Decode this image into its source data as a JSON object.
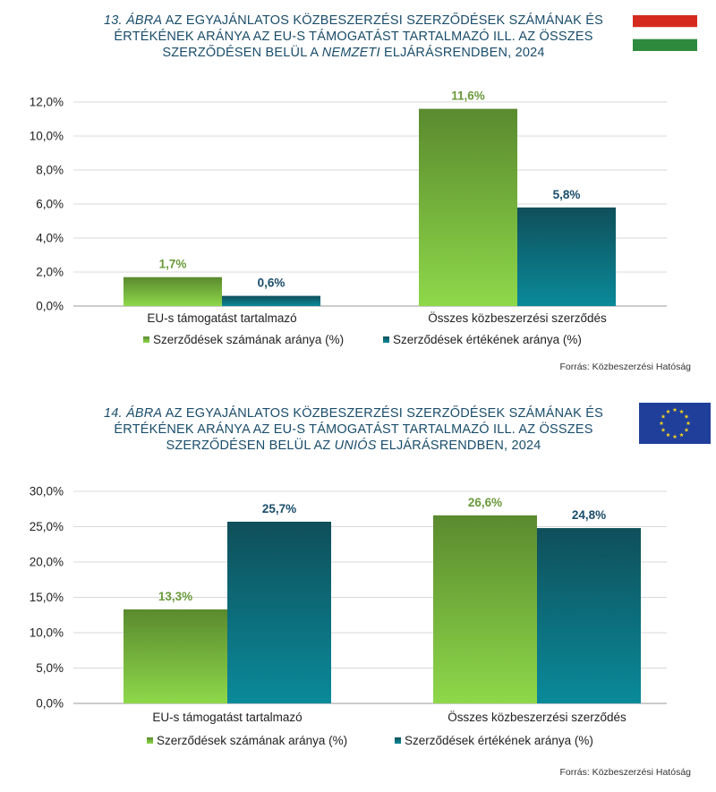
{
  "colors": {
    "green_top": "#5a8a2e",
    "green_bottom": "#8ed84a",
    "teal_top": "#0f4f5a",
    "teal_bottom": "#0a8a9a",
    "green_label": "#6a9a3a",
    "teal_label": "#1a4d6b",
    "title": "#1a4d6b"
  },
  "chart_data": [
    {
      "type": "bar",
      "title_parts": {
        "prefix": "13. ábra",
        "line1": "az egyajánlatos közbeszerzési szerződések számának és",
        "line2": "értékének aránya az EU-s támogatást tartalmazó ill. az összes",
        "line3_a": "szerződésen belül a",
        "line3_it": "nemzeti",
        "line3_b": "eljárásrendben, 2024"
      },
      "flag": "hungarian-flag-icon",
      "categories": [
        "EU-s támogatást tartalmazó",
        "Összes közbeszerzési szerződés"
      ],
      "series": [
        {
          "name": "Szerződések számának aránya (%)",
          "values": [
            1.7,
            11.6
          ],
          "labels": [
            "1,7%",
            "11,6%"
          ]
        },
        {
          "name": "Szerződések értékének aránya (%)",
          "values": [
            0.6,
            5.8
          ],
          "labels": [
            "0,6%",
            "5,8%"
          ]
        }
      ],
      "ylim": [
        0,
        12
      ],
      "yticks": [
        "0,0%",
        "2,0%",
        "4,0%",
        "6,0%",
        "8,0%",
        "10,0%",
        "12,0%"
      ],
      "ytick_values": [
        0,
        2,
        4,
        6,
        8,
        10,
        12
      ],
      "grid": true,
      "legend": "bottom",
      "source": "Forrás: Közbeszerzési Hatóság"
    },
    {
      "type": "bar",
      "title_parts": {
        "prefix": "14. ábra",
        "line1": "az egyajánlatos közbeszerzési szerződések számának és",
        "line2": "értékének aránya az EU-s támogatást tartalmazó ill. az összes",
        "line3_a": "szerződésen belül az",
        "line3_it": "uniós",
        "line3_b": "eljárásrendben, 2024"
      },
      "flag": "eu-flag-icon",
      "categories": [
        "EU-s támogatást tartalmazó",
        "Összes közbeszerzési szerződés"
      ],
      "series": [
        {
          "name": "Szerződések számának aránya (%)",
          "values": [
            13.3,
            26.6
          ],
          "labels": [
            "13,3%",
            "26,6%"
          ]
        },
        {
          "name": "Szerződések értékének aránya (%)",
          "values": [
            25.7,
            24.8
          ],
          "labels": [
            "25,7%",
            "24,8%"
          ]
        }
      ],
      "ylim": [
        0,
        30
      ],
      "yticks": [
        "0,0%",
        "5,0%",
        "10,0%",
        "15,0%",
        "20,0%",
        "25,0%",
        "30,0%"
      ],
      "ytick_values": [
        0,
        5,
        10,
        15,
        20,
        25,
        30
      ],
      "grid": true,
      "legend": "bottom",
      "source": "Forrás: Közbeszerzési Hatóság"
    }
  ]
}
